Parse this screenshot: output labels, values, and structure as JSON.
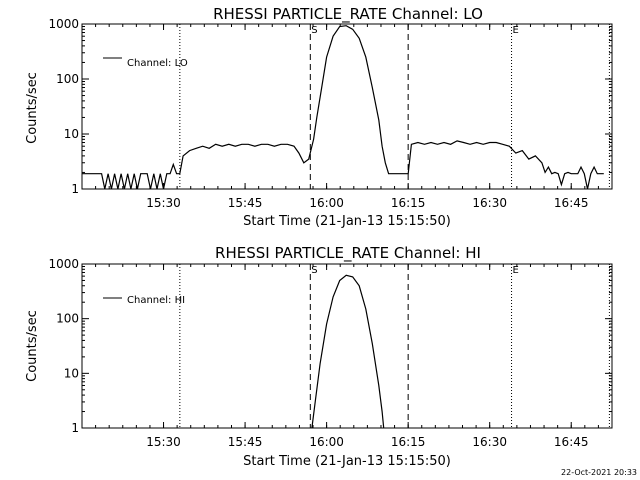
{
  "footer": {
    "timestamp": "22-Oct-2021 20:33"
  },
  "chart_data": [
    {
      "type": "line",
      "title": "RHESSI PARTICLE_RATE Channel: LO",
      "xlabel": "Start Time (21-Jan-13 15:15:50)",
      "ylabel": "Counts/sec",
      "y_scale": "log",
      "ylim": [
        1,
        1000
      ],
      "xlim": [
        15.25,
        16.875
      ],
      "x_ticks": [
        15.5,
        15.75,
        16.0,
        16.25,
        16.5,
        16.75
      ],
      "x_tick_labels": [
        "15:30",
        "15:45",
        "16:00",
        "16:15",
        "16:30",
        "16:45"
      ],
      "y_ticks": [
        1,
        10,
        100,
        1000
      ],
      "y_tick_labels": [
        "1",
        "10",
        "100",
        "1000"
      ],
      "legend": {
        "position": "top-left",
        "entries": [
          "Channel: LO"
        ]
      },
      "dashed_lines_x": [
        15.95,
        16.25
      ],
      "dotted_lines_x": [
        15.55,
        16.567,
        16.867
      ],
      "markers": [
        {
          "label": "S",
          "x": 15.95
        },
        {
          "label": "E",
          "x": 16.567
        }
      ],
      "series": [
        {
          "name": "Channel: LO",
          "points": [
            [
              15.25,
              1.9
            ],
            [
              15.31,
              1.9
            ],
            [
              15.32,
              1
            ],
            [
              15.33,
              1.9
            ],
            [
              15.34,
              1
            ],
            [
              15.35,
              1.9
            ],
            [
              15.36,
              1
            ],
            [
              15.37,
              1.9
            ],
            [
              15.38,
              1
            ],
            [
              15.39,
              1.9
            ],
            [
              15.4,
              1
            ],
            [
              15.41,
              1.9
            ],
            [
              15.42,
              1
            ],
            [
              15.43,
              1.9
            ],
            [
              15.45,
              1.9
            ],
            [
              15.46,
              1
            ],
            [
              15.47,
              1.9
            ],
            [
              15.48,
              1
            ],
            [
              15.49,
              1.9
            ],
            [
              15.5,
              1
            ],
            [
              15.51,
              1.9
            ],
            [
              15.52,
              1.9
            ],
            [
              15.53,
              2.8
            ],
            [
              15.54,
              1.9
            ],
            [
              15.55,
              1.9
            ],
            [
              15.56,
              4.0
            ],
            [
              15.58,
              5.0
            ],
            [
              15.6,
              5.5
            ],
            [
              15.62,
              6.0
            ],
            [
              15.64,
              5.5
            ],
            [
              15.66,
              6.5
            ],
            [
              15.68,
              6.0
            ],
            [
              15.7,
              6.5
            ],
            [
              15.72,
              6.0
            ],
            [
              15.74,
              6.5
            ],
            [
              15.76,
              6.5
            ],
            [
              15.78,
              6.0
            ],
            [
              15.8,
              6.5
            ],
            [
              15.82,
              6.5
            ],
            [
              15.84,
              6.0
            ],
            [
              15.86,
              6.5
            ],
            [
              15.88,
              6.5
            ],
            [
              15.9,
              6.0
            ],
            [
              15.915,
              4.5
            ],
            [
              15.93,
              3.0
            ],
            [
              15.945,
              3.5
            ],
            [
              15.96,
              8
            ],
            [
              15.97,
              20
            ],
            [
              15.985,
              70
            ],
            [
              16.0,
              250
            ],
            [
              16.02,
              600
            ],
            [
              16.04,
              900
            ],
            [
              16.06,
              930
            ],
            [
              16.08,
              800
            ],
            [
              16.1,
              550
            ],
            [
              16.12,
              250
            ],
            [
              16.14,
              70
            ],
            [
              16.16,
              18
            ],
            [
              16.17,
              6
            ],
            [
              16.18,
              3.0
            ],
            [
              16.19,
              1.9
            ],
            [
              16.25,
              1.9
            ],
            [
              16.26,
              6.5
            ],
            [
              16.28,
              7.0
            ],
            [
              16.3,
              6.5
            ],
            [
              16.32,
              7.0
            ],
            [
              16.34,
              6.5
            ],
            [
              16.36,
              7.0
            ],
            [
              16.38,
              6.5
            ],
            [
              16.4,
              7.5
            ],
            [
              16.42,
              7.0
            ],
            [
              16.44,
              6.5
            ],
            [
              16.46,
              7.0
            ],
            [
              16.48,
              6.5
            ],
            [
              16.5,
              7.0
            ],
            [
              16.52,
              7.0
            ],
            [
              16.54,
              6.5
            ],
            [
              16.56,
              6.0
            ],
            [
              16.58,
              4.5
            ],
            [
              16.6,
              5.0
            ],
            [
              16.62,
              3.5
            ],
            [
              16.64,
              4.0
            ],
            [
              16.66,
              3.0
            ],
            [
              16.67,
              2.0
            ],
            [
              16.68,
              2.5
            ],
            [
              16.69,
              1.9
            ],
            [
              16.7,
              2.0
            ],
            [
              16.71,
              1.9
            ],
            [
              16.72,
              1.2
            ],
            [
              16.73,
              1.9
            ],
            [
              16.74,
              2.0
            ],
            [
              16.75,
              1.9
            ],
            [
              16.77,
              1.9
            ],
            [
              16.78,
              2.5
            ],
            [
              16.79,
              1.9
            ],
            [
              16.8,
              1.0
            ],
            [
              16.81,
              1.9
            ],
            [
              16.82,
              2.5
            ],
            [
              16.83,
              1.9
            ],
            [
              16.85,
              1.9
            ]
          ]
        }
      ]
    },
    {
      "type": "line",
      "title": "RHESSI PARTICLE_RATE Channel: HI",
      "xlabel": "Start Time (21-Jan-13 15:15:50)",
      "ylabel": "Counts/sec",
      "y_scale": "log",
      "ylim": [
        1,
        1000
      ],
      "xlim": [
        15.25,
        16.875
      ],
      "x_ticks": [
        15.5,
        15.75,
        16.0,
        16.25,
        16.5,
        16.75
      ],
      "x_tick_labels": [
        "15:30",
        "15:45",
        "16:00",
        "16:15",
        "16:30",
        "16:45"
      ],
      "y_ticks": [
        1,
        10,
        100,
        1000
      ],
      "y_tick_labels": [
        "1",
        "10",
        "100",
        "1000"
      ],
      "legend": {
        "position": "top-left",
        "entries": [
          "Channel: HI"
        ]
      },
      "dashed_lines_x": [
        15.95,
        16.25
      ],
      "dotted_lines_x": [
        15.55,
        16.567,
        16.867
      ],
      "markers": [
        {
          "label": "S",
          "x": 15.95
        },
        {
          "label": "E",
          "x": 16.567
        }
      ],
      "series": [
        {
          "name": "Channel: HI",
          "points": [
            [
              15.955,
              1
            ],
            [
              15.965,
              3
            ],
            [
              15.98,
              15
            ],
            [
              16.0,
              80
            ],
            [
              16.02,
              250
            ],
            [
              16.04,
              500
            ],
            [
              16.06,
              620
            ],
            [
              16.08,
              580
            ],
            [
              16.1,
              400
            ],
            [
              16.12,
              150
            ],
            [
              16.14,
              35
            ],
            [
              16.16,
              6
            ],
            [
              16.17,
              2
            ],
            [
              16.175,
              1
            ]
          ]
        }
      ]
    }
  ]
}
